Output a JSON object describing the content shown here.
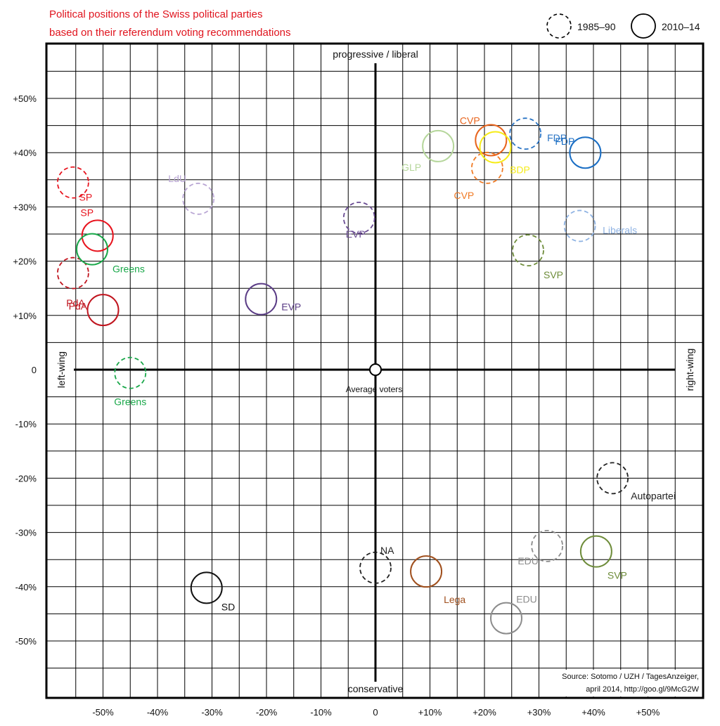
{
  "chart_data": {
    "type": "scatter",
    "title": "Political positions of the Swiss political parties",
    "subtitle": "based on their referendum voting recommendations",
    "xlim": [
      -60,
      60
    ],
    "ylim": [
      -60,
      60
    ],
    "grid": true,
    "x_ticks": [
      "-50%",
      "-40%",
      "-30%",
      "-20%",
      "-10%",
      "0",
      "+10%",
      "+20%",
      "+30%",
      "+40%",
      "+50%"
    ],
    "y_ticks": [
      "+50%",
      "+40%",
      "+30%",
      "+20%",
      "+10%",
      "0",
      "-10%",
      "-20%",
      "-30%",
      "-40%",
      "-50%"
    ],
    "axis_labels": {
      "top": "progressive / liberal",
      "bottom": "conservative",
      "left": "left-wing",
      "right": "right-wing"
    },
    "center_label": "Average voters",
    "legend": {
      "placement": "top-right",
      "items": [
        {
          "label": "1985–90",
          "style": "dashed"
        },
        {
          "label": "2010–14",
          "style": "solid"
        }
      ]
    },
    "series": [
      {
        "name": "1985–90",
        "style": "dashed",
        "points": [
          {
            "label": "SP",
            "x": -55.5,
            "y": 34.5,
            "color": "#e8141e"
          },
          {
            "label": "PdA",
            "x": -55.5,
            "y": 17.8,
            "color": "#c0141e"
          },
          {
            "label": "Greens",
            "x": -45,
            "y": -0.6,
            "color": "#1aa84a"
          },
          {
            "label": "LdU",
            "x": -32.5,
            "y": 31.5,
            "color": "#b9a6d4"
          },
          {
            "label": "EVP",
            "x": -3,
            "y": 28,
            "color": "#6a4c93"
          },
          {
            "label": "CVP",
            "x": 20.5,
            "y": 37.2,
            "color": "#f07a24"
          },
          {
            "label": "FDP",
            "x": 27.5,
            "y": 43.5,
            "color": "#2a74c4"
          },
          {
            "label": "Liberals",
            "x": 37.5,
            "y": 26.5,
            "color": "#8fb3e3"
          },
          {
            "label": "SVP",
            "x": 28,
            "y": 22,
            "color": "#6e8c3a"
          },
          {
            "label": "Autopartei",
            "x": 43.5,
            "y": -20,
            "color": "#222222"
          },
          {
            "label": "EDU",
            "x": 31.5,
            "y": -32.5,
            "color": "#8c8c8c"
          },
          {
            "label": "NA",
            "x": 0,
            "y": -36.5,
            "color": "#222222"
          }
        ]
      },
      {
        "name": "2010–14",
        "style": "solid",
        "points": [
          {
            "label": "SP",
            "x": -51,
            "y": 24.7,
            "color": "#e8141e"
          },
          {
            "label": "Greens",
            "x": -52,
            "y": 22.2,
            "color": "#1aa84a"
          },
          {
            "label": "PdA",
            "x": -50,
            "y": 11,
            "color": "#c0141e"
          },
          {
            "label": "EVP",
            "x": -21,
            "y": 13,
            "color": "#5b3d86"
          },
          {
            "label": "GLP",
            "x": 11.5,
            "y": 41.2,
            "color": "#b5d69b"
          },
          {
            "label": "CVP",
            "x": 21.2,
            "y": 42.3,
            "color": "#e8651e"
          },
          {
            "label": "BDP",
            "x": 22,
            "y": 41,
            "color": "#f6ec1a"
          },
          {
            "label": "FDP",
            "x": 38.5,
            "y": 40,
            "color": "#1a6ec4"
          },
          {
            "label": "SVP",
            "x": 40.5,
            "y": -33.5,
            "color": "#6e8c3a"
          },
          {
            "label": "EDU",
            "x": 24,
            "y": -45.8,
            "color": "#8c8c8c"
          },
          {
            "label": "Lega",
            "x": 9.3,
            "y": -37.2,
            "color": "#a0501e"
          },
          {
            "label": "SD",
            "x": -31,
            "y": -40.2,
            "color": "#111111"
          }
        ]
      }
    ],
    "source": [
      "Source: Sotomo / UZH / TagesAnzeiger,",
      "april 2014, http://goo.gl/9McG2W"
    ]
  }
}
